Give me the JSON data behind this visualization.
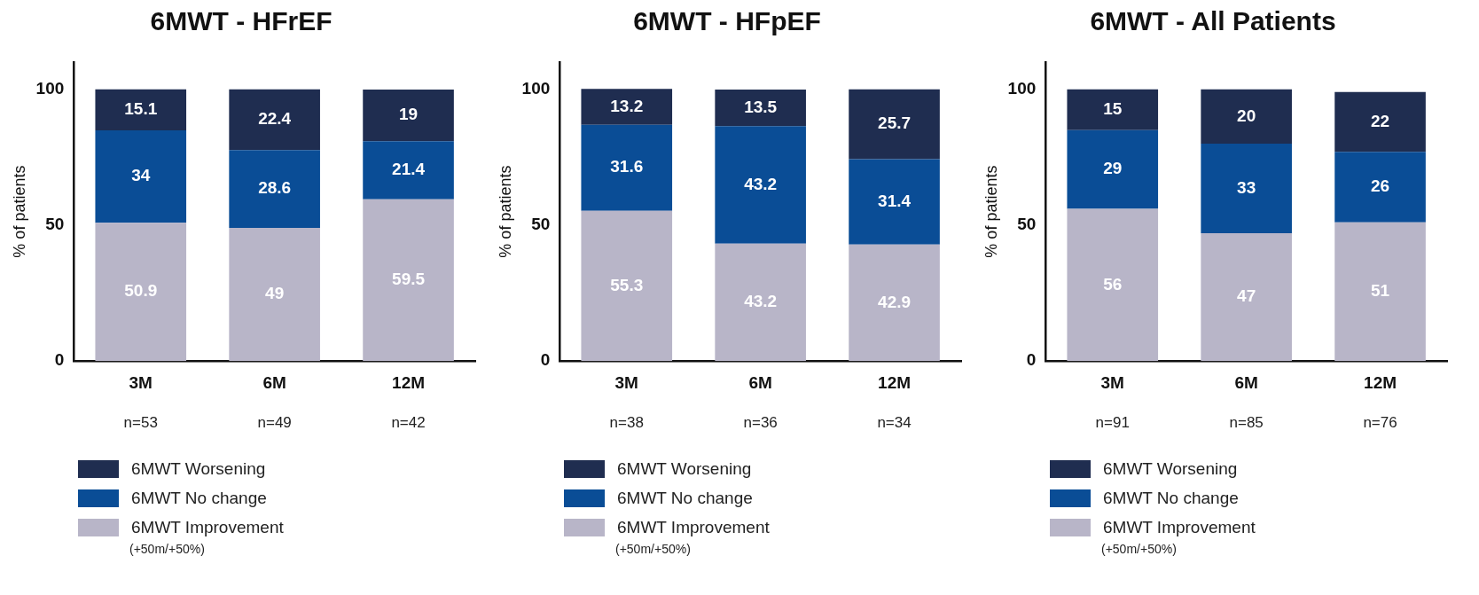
{
  "chart_data": [
    {
      "type": "bar",
      "title": "6MWT - HFrEF",
      "ylabel": "% of patients",
      "categories": [
        "3M",
        "6M",
        "12M"
      ],
      "stacked": true,
      "data_labels": true,
      "legend": "bottom",
      "grid": false,
      "ylim": [
        0,
        110
      ],
      "yticks": [
        0,
        50,
        100
      ],
      "series": [
        {
          "name": "6MWT Improvement",
          "color": "#b8b5c8",
          "values": [
            50.9,
            49,
            59.5
          ]
        },
        {
          "name": "6MWT No change",
          "color": "#0a4d96",
          "values": [
            34,
            28.6,
            21.4
          ]
        },
        {
          "name": "6MWT Worsening",
          "color": "#1f2d50",
          "values": [
            15.1,
            22.4,
            19
          ]
        }
      ],
      "annotations": [
        "n=53",
        "n=49",
        "n=42",
        "(+50m/+50%)"
      ]
    },
    {
      "type": "bar",
      "title": "6MWT - HFpEF",
      "ylabel": "% of patients",
      "categories": [
        "3M",
        "6M",
        "12M"
      ],
      "stacked": true,
      "data_labels": true,
      "legend": "bottom",
      "grid": false,
      "ylim": [
        0,
        110
      ],
      "yticks": [
        0,
        50,
        100
      ],
      "series": [
        {
          "name": "6MWT Improvement",
          "color": "#b8b5c8",
          "values": [
            55.3,
            43.2,
            42.9
          ]
        },
        {
          "name": "6MWT No change",
          "color": "#0a4d96",
          "values": [
            31.6,
            43.2,
            31.4
          ]
        },
        {
          "name": "6MWT Worsening",
          "color": "#1f2d50",
          "values": [
            13.2,
            13.5,
            25.7
          ]
        }
      ],
      "annotations": [
        "n=38",
        "n=36",
        "n=34",
        "(+50m/+50%)"
      ]
    },
    {
      "type": "bar",
      "title": "6MWT - All Patients",
      "ylabel": "% of patients",
      "categories": [
        "3M",
        "6M",
        "12M"
      ],
      "stacked": true,
      "data_labels": true,
      "legend": "bottom",
      "grid": false,
      "ylim": [
        0,
        110
      ],
      "yticks": [
        0,
        50,
        100
      ],
      "series": [
        {
          "name": "6MWT Improvement",
          "color": "#b8b5c8",
          "values": [
            56,
            47,
            51
          ]
        },
        {
          "name": "6MWT No change",
          "color": "#0a4d96",
          "values": [
            29,
            33,
            26
          ]
        },
        {
          "name": "6MWT Worsening",
          "color": "#1f2d50",
          "values": [
            15,
            20,
            22
          ]
        }
      ],
      "annotations": [
        "n=91",
        "n=85",
        "n=76",
        "(+50m/+50%)"
      ]
    }
  ]
}
